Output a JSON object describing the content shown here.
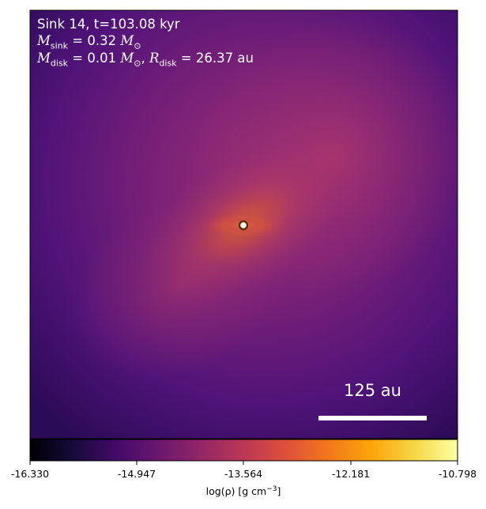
{
  "annotations": {
    "line1": "Sink 14, t=103.08 kyr",
    "sink_mass_symbol": "M",
    "sink_mass_sub": "sink",
    "sink_mass_value": " = 0.32 ",
    "disk_mass_symbol": "M",
    "disk_mass_sub": "disk",
    "disk_mass_value": " = 0.01 ",
    "solar_symbol": "M",
    "solar_sub": "⊙",
    "separator": ", ",
    "disk_radius_symbol": "R",
    "disk_radius_sub": "disk",
    "disk_radius_value": " = 26.37 au"
  },
  "scale_bar": {
    "label": "125 au"
  },
  "colorbar": {
    "colormap": "inferno",
    "ticks": [
      "-16.330",
      "-14.947",
      "-13.564",
      "-12.181",
      "-10.798"
    ],
    "label_prefix": "log(ρ) [g cm",
    "label_exp": "−3",
    "label_suffix": "]"
  },
  "colors": {
    "background_dark": "#3a0f6b",
    "mid": "#9b2f73",
    "hot": "#f57d15",
    "core": "#fcffa4",
    "sink_fill": "#ffffff",
    "sink_ring": "#6b3a0a"
  }
}
